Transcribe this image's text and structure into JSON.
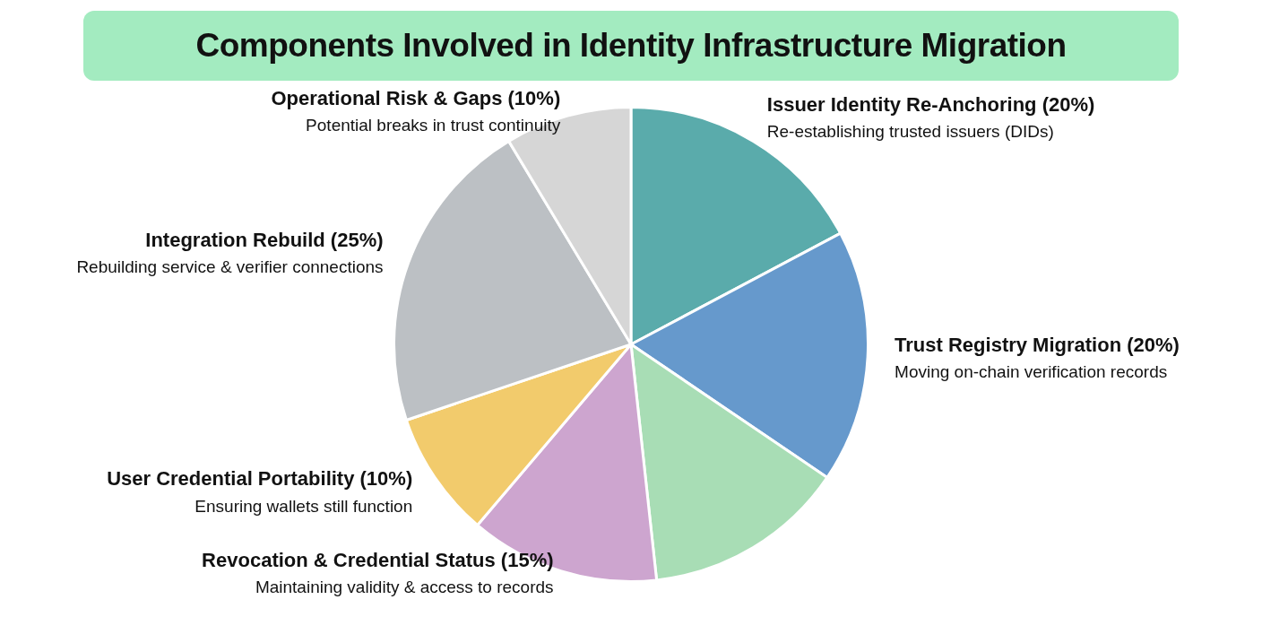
{
  "chart_data": {
    "type": "pie",
    "title": "Components Involved in Identity Infrastructure Migration",
    "categories": [
      "Issuer Identity Re-Anchoring (20%)",
      "Trust Registry Migration (20%)",
      null,
      "Revocation & Credential Status (15%)",
      "User Credential Portability (10%)",
      "Integration Rebuild (25%)",
      "Operational Risk & Gaps (10%)"
    ],
    "values": [
      20,
      20,
      16,
      15,
      10,
      25,
      10
    ],
    "colors": [
      "#5aabab",
      "#6699cc",
      "#a8ddb5",
      "#cda5cf",
      "#f2cb6c",
      "#bcc0c4",
      "#d6d6d6"
    ],
    "annotations": [
      "Re-establishing trusted issuers (DIDs)",
      "Moving on-chain verification records",
      "Maintaining validity & access to records",
      "Ensuring wallets still function",
      "Rebuilding service & verifier connections",
      "Potential breaks in trust continuity"
    ],
    "legend": false
  }
}
